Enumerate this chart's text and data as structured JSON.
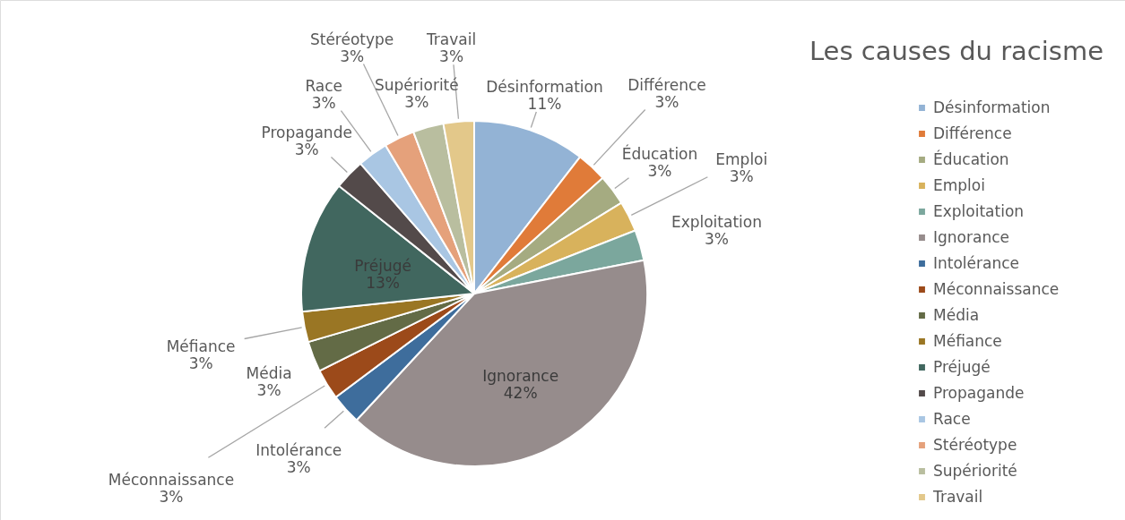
{
  "chart_data": {
    "type": "pie",
    "title": "Les causes du racisme",
    "categories": [
      "Désinformation",
      "Différence",
      "Éducation",
      "Emploi",
      "Exploitation",
      "Ignorance",
      "Intolérance",
      "Méconnaissance",
      "Média",
      "Méfiance",
      "Préjugé",
      "Propagande",
      "Race",
      "Stéréotype",
      "Supériorité",
      "Travail"
    ],
    "values": [
      11,
      3,
      3,
      3,
      3,
      42,
      3,
      3,
      3,
      3,
      13,
      3,
      3,
      3,
      3,
      3
    ],
    "value_labels": [
      "11%",
      "3%",
      "3%",
      "3%",
      "3%",
      "42%",
      "3%",
      "3%",
      "3%",
      "3%",
      "13%",
      "3%",
      "3%",
      "3%",
      "3%",
      "3%"
    ],
    "colors": [
      "#93b3d5",
      "#e07b39",
      "#a5ab81",
      "#d8b25c",
      "#7ba79d",
      "#968c8c",
      "#3e6d9c",
      "#9c4a1a",
      "#636b46",
      "#9a7624",
      "#41675f",
      "#534a4a",
      "#a9c6e3",
      "#e5a17b",
      "#b9be9f",
      "#e3c88a"
    ],
    "legend": "right"
  }
}
